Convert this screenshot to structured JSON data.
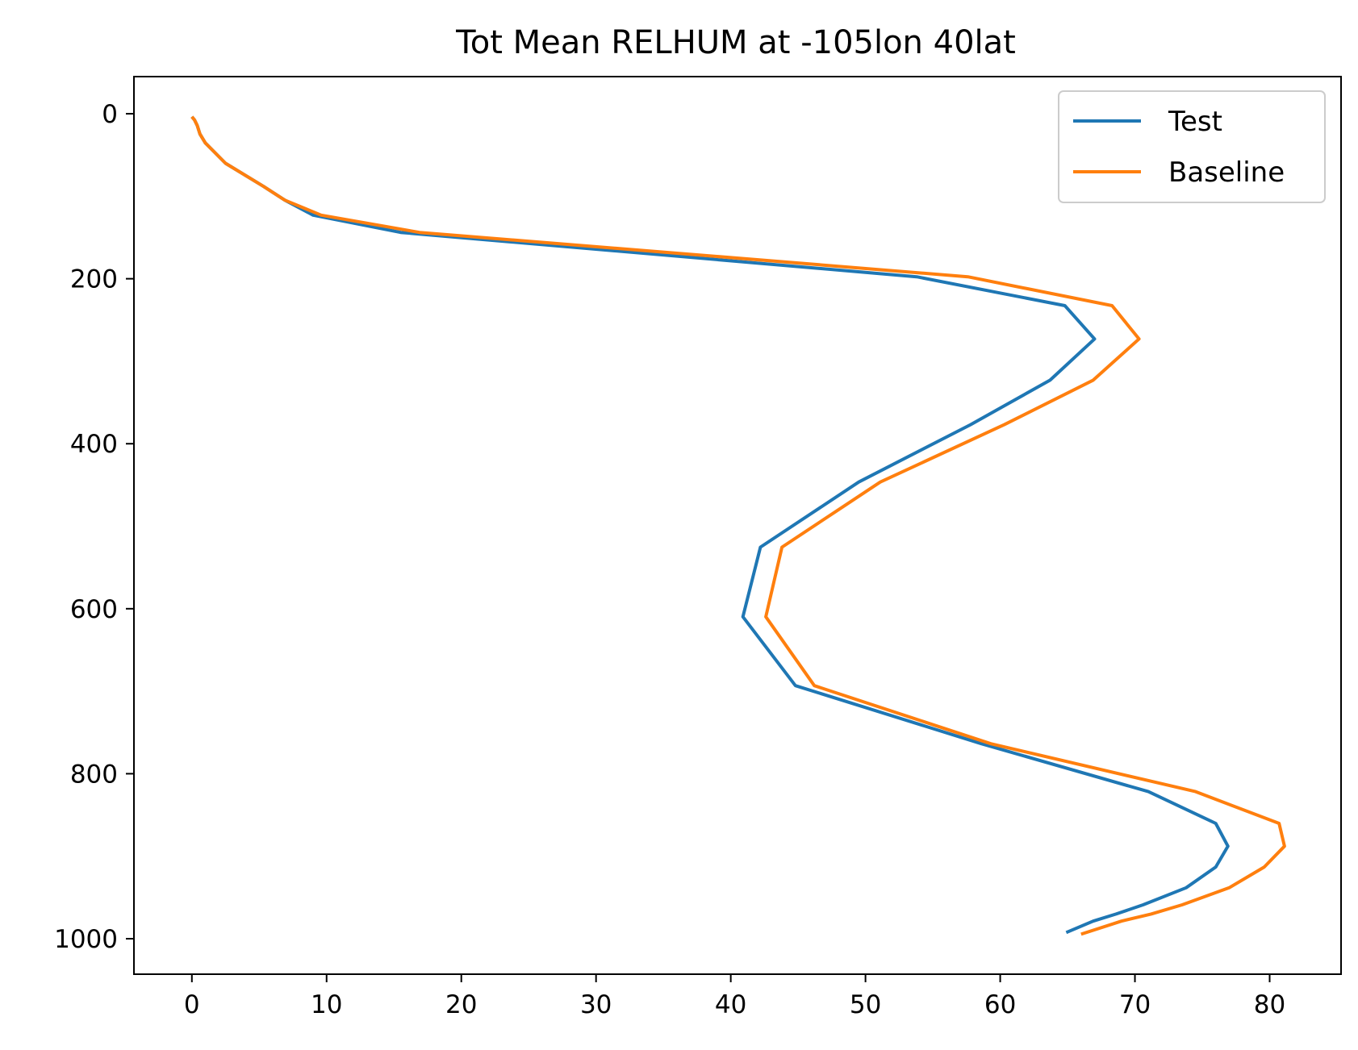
{
  "chart_data": {
    "type": "line",
    "title": "Tot Mean RELHUM at -105lon 40lat",
    "xlabel": "",
    "ylabel": "",
    "xlim": [
      -4.3,
      85.3
    ],
    "ylim": [
      1043,
      -45
    ],
    "y_inverted": true,
    "grid": false,
    "legend_position": "top-right",
    "x_ticks": [
      0,
      10,
      20,
      30,
      40,
      50,
      60,
      70,
      80
    ],
    "y_ticks": [
      0,
      200,
      400,
      600,
      800,
      1000
    ],
    "series": [
      {
        "name": "Test",
        "color": "#1f77b4",
        "points": [
          [
            0.0,
            3.6
          ],
          [
            0.2,
            7.6
          ],
          [
            0.4,
            14.4
          ],
          [
            0.6,
            24.6
          ],
          [
            1.0,
            35.5
          ],
          [
            2.5,
            60.1
          ],
          [
            5.3,
            87.8
          ],
          [
            6.9,
            104.8
          ],
          [
            9.0,
            122.9
          ],
          [
            15.5,
            143.9
          ],
          [
            53.8,
            197.6
          ],
          [
            64.8,
            232.6
          ],
          [
            67.0,
            273.0
          ],
          [
            63.7,
            322.9
          ],
          [
            57.8,
            376.9
          ],
          [
            49.5,
            446.4
          ],
          [
            42.2,
            525.4
          ],
          [
            40.9,
            609.8
          ],
          [
            44.8,
            693.2
          ],
          [
            58.6,
            763.6
          ],
          [
            71.0,
            821.7
          ],
          [
            76.0,
            860.2
          ],
          [
            76.9,
            887.9
          ],
          [
            76.0,
            913.1
          ],
          [
            73.8,
            938.2
          ],
          [
            70.6,
            958.9
          ],
          [
            68.6,
            970.1
          ],
          [
            66.9,
            978.7
          ],
          [
            64.9,
            992.5
          ]
        ]
      },
      {
        "name": "Baseline",
        "color": "#ff7f0e",
        "points": [
          [
            0.0,
            3.6
          ],
          [
            0.2,
            7.6
          ],
          [
            0.4,
            14.4
          ],
          [
            0.6,
            24.6
          ],
          [
            1.0,
            35.5
          ],
          [
            2.5,
            60.1
          ],
          [
            5.3,
            87.8
          ],
          [
            6.9,
            104.8
          ],
          [
            9.6,
            122.9
          ],
          [
            16.9,
            143.9
          ],
          [
            57.6,
            197.6
          ],
          [
            68.3,
            232.6
          ],
          [
            70.3,
            273.0
          ],
          [
            66.9,
            322.9
          ],
          [
            60.3,
            376.9
          ],
          [
            51.1,
            446.4
          ],
          [
            43.8,
            525.4
          ],
          [
            42.6,
            609.8
          ],
          [
            46.2,
            693.2
          ],
          [
            59.3,
            763.6
          ],
          [
            74.5,
            821.7
          ],
          [
            80.7,
            860.2
          ],
          [
            81.1,
            887.9
          ],
          [
            79.6,
            913.1
          ],
          [
            77.0,
            938.2
          ],
          [
            73.5,
            958.9
          ],
          [
            71.2,
            970.1
          ],
          [
            69.0,
            978.7
          ],
          [
            66.0,
            994.5
          ]
        ]
      }
    ]
  }
}
